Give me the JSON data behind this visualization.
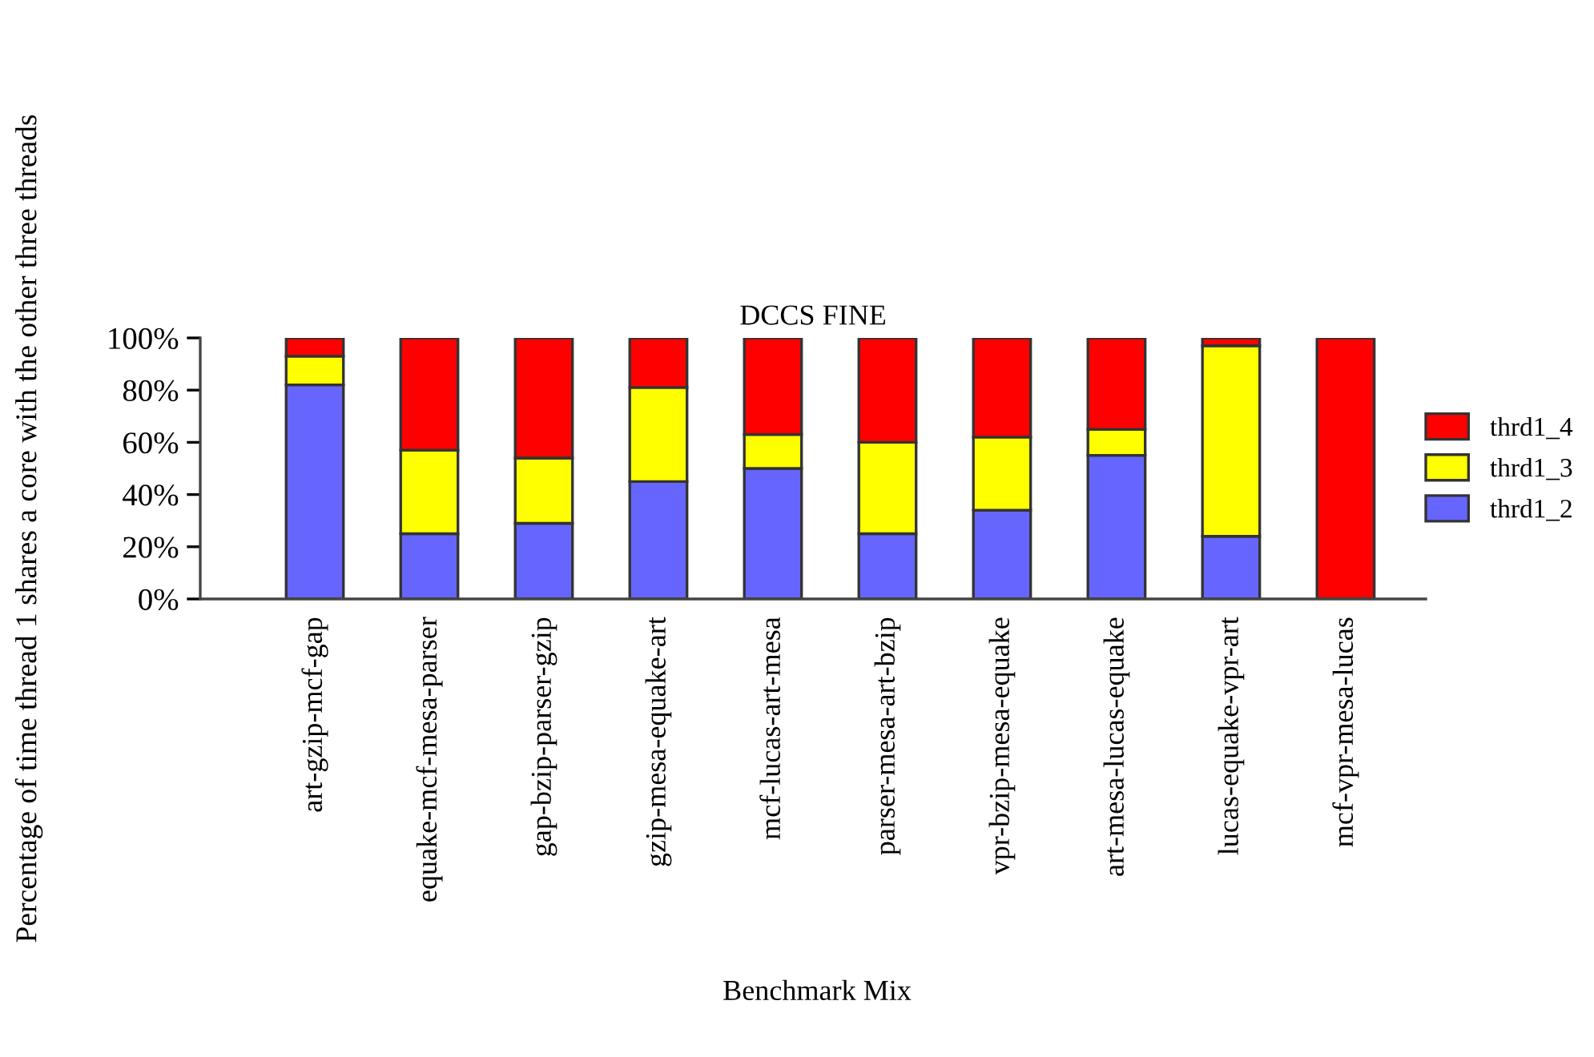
{
  "chart_data": {
    "type": "bar",
    "title": "DCCS FINE",
    "xlabel": "Benchmark Mix",
    "ylabel": "Percentage of time thread 1 shares a core with the other three threads",
    "categories": [
      "art-gzip-mcf-gap",
      "equake-mcf-mesa-parser",
      "gap-bzip-parser-gzip",
      "gzip-mesa-equake-art",
      "mcf-lucas-art-mesa",
      "parser-mesa-art-bzip",
      "vpr-bzip-mesa-equake",
      "art-mesa-lucas-equake",
      "lucas-equake-vpr-art",
      "mcf-vpr-mesa-lucas"
    ],
    "stacked": true,
    "series": [
      {
        "name": "thrd1_2",
        "color": "#6666ff",
        "values": [
          82,
          25,
          29,
          45,
          50,
          25,
          34,
          55,
          24,
          0
        ]
      },
      {
        "name": "thrd1_3",
        "color": "#ffff00",
        "values": [
          11,
          32,
          25,
          36,
          13,
          35,
          28,
          10,
          73,
          0
        ]
      },
      {
        "name": "thrd1_4",
        "color": "#ff0000",
        "values": [
          7,
          43,
          46,
          19,
          37,
          40,
          38,
          35,
          3,
          100
        ]
      }
    ],
    "ylim": [
      0,
      100
    ],
    "yticks": [
      {
        "value": 0,
        "label": "0%"
      },
      {
        "value": 20,
        "label": "20%"
      },
      {
        "value": 40,
        "label": "40%"
      },
      {
        "value": 60,
        "label": "60%"
      },
      {
        "value": 80,
        "label": "80%"
      },
      {
        "value": 100,
        "label": "100%"
      }
    ],
    "grid": false,
    "legend": "right"
  }
}
